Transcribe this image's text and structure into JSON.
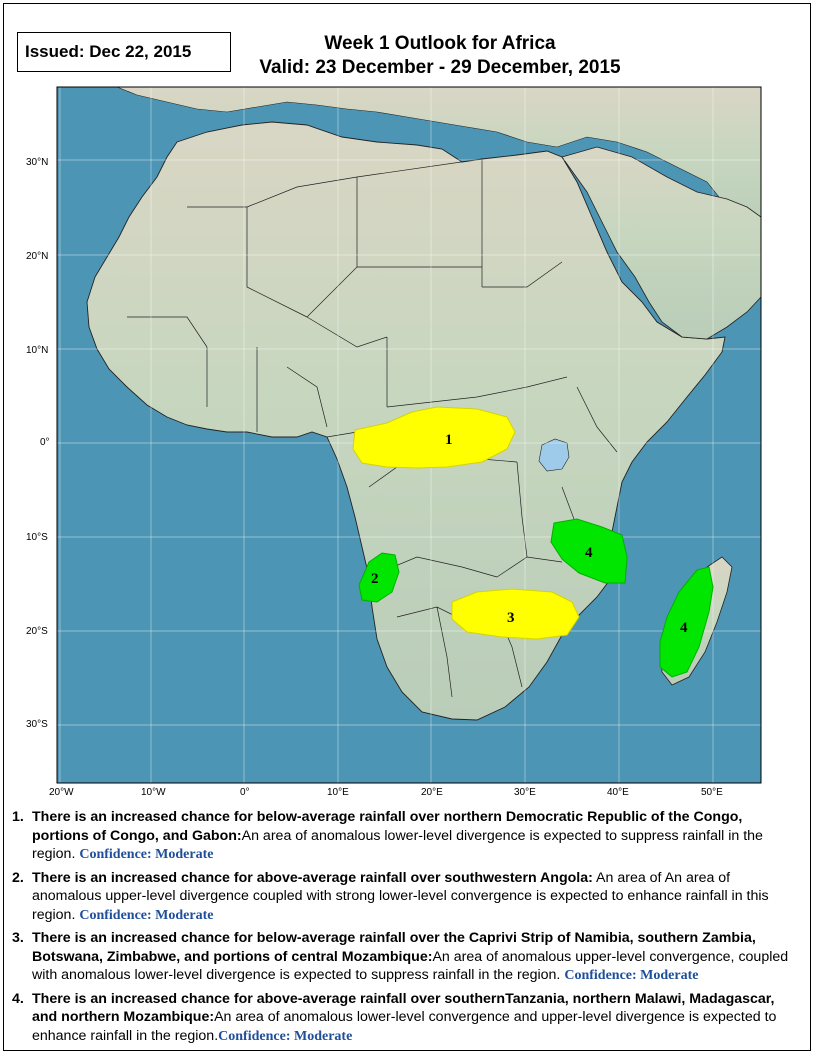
{
  "issued": "Issued: Dec 22, 2015",
  "title": {
    "line1": "Week 1 Outlook for Africa",
    "line2": "Valid: 23 December - 29 December, 2015"
  },
  "map": {
    "lat_labels": [
      "30°N",
      "20°N",
      "10°N",
      "0°",
      "10°S",
      "20°S",
      "30°S"
    ],
    "lon_labels": [
      "20°W",
      "10°W",
      "0°",
      "10°E",
      "20°E",
      "30°E",
      "40°E",
      "50°E"
    ],
    "regions": [
      {
        "id": "1",
        "label": "1",
        "type": "below-average rainfall",
        "color": "#ffff00"
      },
      {
        "id": "2",
        "label": "2",
        "type": "above-average rainfall",
        "color": "#00e600"
      },
      {
        "id": "3",
        "label": "3",
        "type": "below-average rainfall",
        "color": "#ffff00"
      },
      {
        "id": "4a",
        "label": "4",
        "type": "above-average rainfall",
        "color": "#00e600"
      },
      {
        "id": "4b",
        "label": "4",
        "type": "above-average rainfall",
        "color": "#00e600"
      }
    ],
    "colors": {
      "ocean": "#4d95b4",
      "land": "#c9d8c2",
      "below": "#ffff00",
      "above": "#00e600",
      "lake": "#9ecbea"
    }
  },
  "notes": [
    {
      "num": "1.",
      "headline": "There is an increased chance for below-average rainfall over northern Democratic Republic of the Congo, portions of Congo, and Gabon:",
      "text": "An area of anomalous lower-level divergence is expected to suppress rainfall in the region.",
      "confidence": "Confidence: Moderate"
    },
    {
      "num": "2.",
      "headline": "There is an increased chance for above-average rainfall over southwestern Angola:",
      "text": "An area of An area of anomalous upper-level divergence coupled with strong lower-level convergence is expected to enhance rainfall in this region.",
      "confidence": "Confidence: Moderate"
    },
    {
      "num": "3.",
      "headline": "There is an increased chance for below-average rainfall over the Caprivi Strip of Namibia, southern Zambia, Botswana, Zimbabwe, and portions of central Mozambique:",
      "text": "An area of anomalous upper-level convergence, coupled with anomalous lower-level divergence is expected to suppress rainfall in the region.",
      "confidence": "Confidence: Moderate"
    },
    {
      "num": "4.",
      "headline": "There is an increased chance for above-average rainfall over southernTanzania, northern Malawi, Madagascar, and northern Mozambique:",
      "text": "An area of anomalous lower-level convergence and upper-level divergence is expected to enhance rainfall in the region.",
      "confidence": "Confidence: Moderate"
    }
  ]
}
